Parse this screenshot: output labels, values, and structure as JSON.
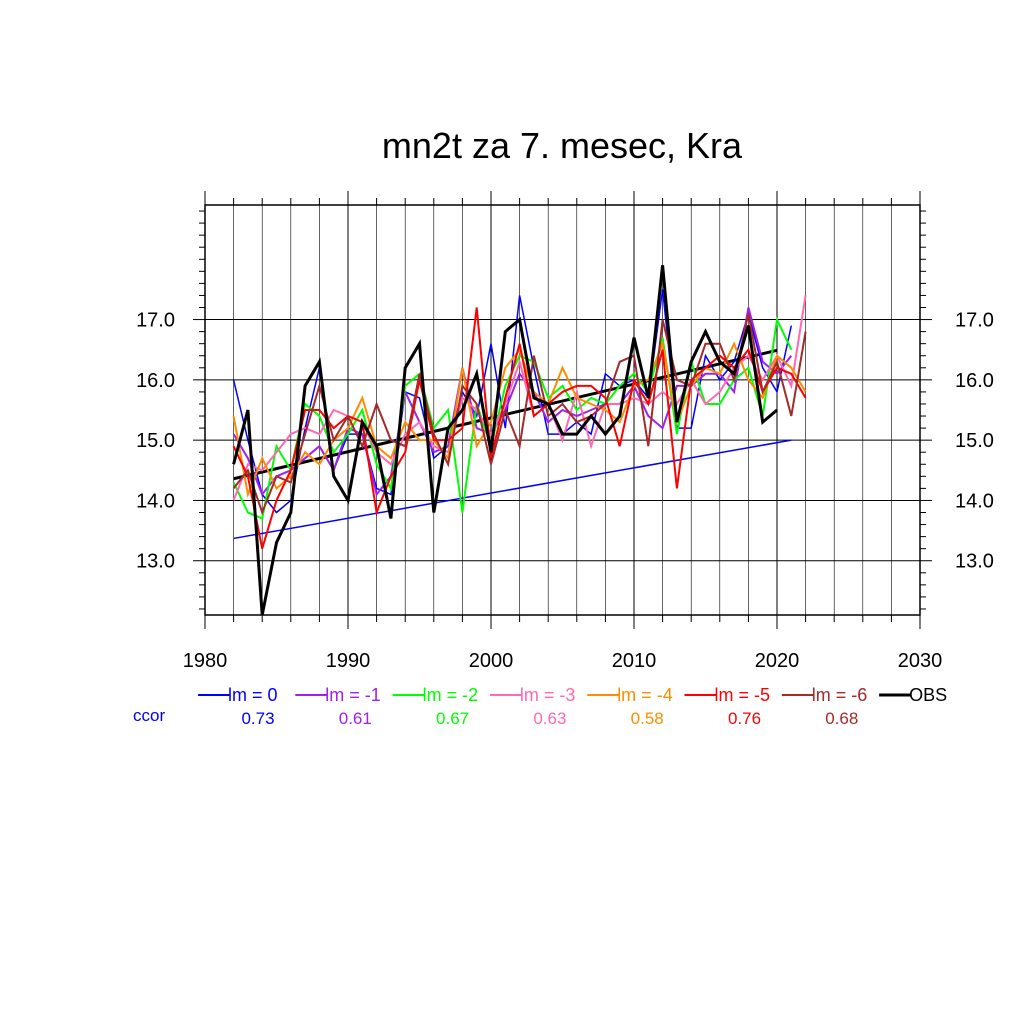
{
  "chart_data": {
    "type": "line",
    "title": "mn2t za 7. mesec, Kra",
    "xlabel": "",
    "ylabel": "",
    "xlim": [
      1980,
      2030
    ],
    "ylim": [
      12.1,
      18.9
    ],
    "xticks": [
      1980,
      1990,
      2000,
      2010,
      2020,
      2030
    ],
    "xtick_labels": [
      "1980",
      "1990",
      "2000",
      "2010",
      "2020",
      "2030"
    ],
    "yticks": [
      13.0,
      14.0,
      15.0,
      16.0,
      17.0
    ],
    "ytick_labels": [
      "13.0",
      "14.0",
      "15.0",
      "16.0",
      "17.0"
    ],
    "grid": true,
    "legend_position": "bottom",
    "ccor_label": "ccor",
    "series": [
      {
        "name": "lm = 0",
        "color": "#0000ff",
        "ccor": "0.73",
        "x": [
          1982,
          1983,
          1984,
          1985,
          1986,
          1987,
          1988,
          1989,
          1990,
          1991,
          1992,
          1993,
          1994,
          1995,
          1996,
          1997,
          1998,
          1999,
          2000,
          2001,
          2002,
          2003,
          2004,
          2005,
          2006,
          2007,
          2008,
          2009,
          2010,
          2011,
          2012,
          2013,
          2014,
          2015,
          2016,
          2017,
          2018,
          2019,
          2020,
          2021
        ],
        "values": [
          16.0,
          15.0,
          14.1,
          13.8,
          14.0,
          15.2,
          16.2,
          14.5,
          15.1,
          15.1,
          14.2,
          14.1,
          15.8,
          15.7,
          14.7,
          14.9,
          15.8,
          15.4,
          16.6,
          15.2,
          17.4,
          16.2,
          15.1,
          15.1,
          15.3,
          15.1,
          16.1,
          15.9,
          16.0,
          15.7,
          17.5,
          15.2,
          15.2,
          16.4,
          16.0,
          16.3,
          17.1,
          16.2,
          15.8,
          16.9
        ]
      },
      {
        "name": "lm = -1",
        "color": "#a020f0",
        "ccor": "0.61",
        "x": [
          1982,
          1983,
          1984,
          1985,
          1986,
          1987,
          1988,
          1989,
          1990,
          1991,
          1992,
          1993,
          1994,
          1995,
          1996,
          1997,
          1998,
          1999,
          2000,
          2001,
          2002,
          2003,
          2004,
          2005,
          2006,
          2007,
          2008,
          2009,
          2010,
          2011,
          2012,
          2013,
          2014,
          2015,
          2016,
          2017,
          2018,
          2019,
          2020,
          2021
        ],
        "values": [
          15.1,
          14.7,
          14.1,
          14.4,
          14.5,
          14.7,
          14.9,
          14.5,
          15.2,
          15.1,
          14.1,
          14.4,
          15.8,
          15.3,
          14.8,
          14.9,
          16.2,
          15.2,
          15.1,
          15.5,
          16.1,
          15.8,
          15.3,
          15.5,
          15.4,
          15.5,
          15.6,
          15.6,
          15.9,
          15.4,
          15.2,
          15.9,
          15.9,
          16.1,
          16.1,
          15.8,
          17.2,
          16.3,
          16.1,
          16.4
        ]
      },
      {
        "name": "lm = -2",
        "color": "#00ff00",
        "ccor": "0.67",
        "x": [
          1982,
          1983,
          1984,
          1985,
          1986,
          1987,
          1988,
          1989,
          1990,
          1991,
          1992,
          1993,
          1994,
          1995,
          1996,
          1997,
          1998,
          1999,
          2000,
          2001,
          2002,
          2003,
          2004,
          2005,
          2006,
          2007,
          2008,
          2009,
          2010,
          2011,
          2012,
          2013,
          2014,
          2015,
          2016,
          2017,
          2018,
          2019,
          2020,
          2021
        ],
        "values": [
          14.3,
          13.8,
          13.7,
          14.9,
          14.5,
          15.6,
          15.4,
          14.8,
          15.1,
          15.5,
          14.6,
          14.2,
          15.9,
          16.1,
          15.2,
          15.5,
          13.8,
          15.6,
          14.9,
          15.9,
          16.4,
          16.3,
          15.7,
          15.9,
          15.5,
          15.7,
          15.6,
          15.9,
          16.1,
          15.8,
          16.7,
          15.1,
          16.3,
          15.6,
          15.6,
          16.0,
          16.2,
          15.4,
          17.0,
          16.5
        ]
      },
      {
        "name": "lm = -3",
        "color": "#ff69b4",
        "ccor": "0.63",
        "x": [
          1982,
          1983,
          1984,
          1985,
          1986,
          1987,
          1988,
          1989,
          1990,
          1991,
          1992,
          1993,
          1994,
          1995,
          1996,
          1997,
          1998,
          1999,
          2000,
          2001,
          2002,
          2003,
          2004,
          2005,
          2006,
          2007,
          2008,
          2009,
          2010,
          2011,
          2012,
          2013,
          2014,
          2015,
          2016,
          2017,
          2018,
          2019,
          2020,
          2021,
          2022
        ],
        "values": [
          14.0,
          14.6,
          14.5,
          14.8,
          15.1,
          15.2,
          15.1,
          15.5,
          15.4,
          15.3,
          14.8,
          14.6,
          15.1,
          15.3,
          14.9,
          14.8,
          15.7,
          15.5,
          15.1,
          15.6,
          16.3,
          15.4,
          15.6,
          15.0,
          15.8,
          14.9,
          15.6,
          15.6,
          15.7,
          15.6,
          15.8,
          15.6,
          16.0,
          15.6,
          15.8,
          16.2,
          16.4,
          16.0,
          16.4,
          15.9,
          17.4
        ]
      },
      {
        "name": "lm = -4",
        "color": "#ff8c00",
        "ccor": "0.58",
        "x": [
          1982,
          1983,
          1984,
          1985,
          1986,
          1987,
          1988,
          1989,
          1990,
          1991,
          1992,
          1993,
          1994,
          1995,
          1996,
          1997,
          1998,
          1999,
          2000,
          2001,
          2002,
          2003,
          2004,
          2005,
          2006,
          2007,
          2008,
          2009,
          2010,
          2011,
          2012,
          2013,
          2014,
          2015,
          2016,
          2017,
          2018,
          2019,
          2020,
          2021,
          2022
        ],
        "values": [
          15.4,
          14.1,
          14.7,
          14.2,
          14.4,
          14.8,
          14.6,
          15.0,
          15.2,
          15.7,
          14.9,
          14.7,
          15.3,
          15.0,
          15.0,
          14.7,
          16.2,
          14.9,
          15.3,
          16.2,
          16.5,
          15.8,
          15.6,
          16.2,
          15.7,
          15.6,
          15.5,
          15.3,
          15.9,
          16.0,
          16.6,
          15.3,
          15.9,
          16.2,
          16.1,
          16.6,
          16.0,
          15.7,
          16.4,
          16.2,
          15.8
        ]
      },
      {
        "name": "lm = -5",
        "color": "#ff0000",
        "ccor": "0.76",
        "x": [
          1982,
          1983,
          1984,
          1985,
          1986,
          1987,
          1988,
          1989,
          1990,
          1991,
          1992,
          1993,
          1994,
          1995,
          1996,
          1997,
          1998,
          1999,
          2000,
          2001,
          2002,
          2003,
          2004,
          2005,
          2006,
          2007,
          2008,
          2009,
          2010,
          2011,
          2012,
          2013,
          2014,
          2015,
          2016,
          2017,
          2018,
          2019,
          2020,
          2021,
          2022
        ],
        "values": [
          14.9,
          14.4,
          13.2,
          14.0,
          14.5,
          15.5,
          15.5,
          15.2,
          15.4,
          15.3,
          13.8,
          14.4,
          14.8,
          16.0,
          15.0,
          15.0,
          15.2,
          17.2,
          14.7,
          15.7,
          16.6,
          15.4,
          15.6,
          15.8,
          15.9,
          15.9,
          15.7,
          14.9,
          16.0,
          15.6,
          16.5,
          14.2,
          16.0,
          16.2,
          16.4,
          16.2,
          16.5,
          15.8,
          16.2,
          16.1,
          15.7
        ]
      },
      {
        "name": "lm = -6",
        "color": "#a52a2a",
        "ccor": "0.68",
        "x": [
          1982,
          1983,
          1984,
          1985,
          1986,
          1987,
          1988,
          1989,
          1990,
          1991,
          1992,
          1993,
          1994,
          1995,
          1996,
          1997,
          1998,
          1999,
          2000,
          2001,
          2002,
          2003,
          2004,
          2005,
          2006,
          2007,
          2008,
          2009,
          2010,
          2011,
          2012,
          2013,
          2014,
          2015,
          2016,
          2017,
          2018,
          2019,
          2020,
          2021,
          2022
        ],
        "values": [
          14.2,
          14.5,
          13.8,
          14.4,
          14.3,
          15.1,
          15.9,
          15.0,
          15.4,
          14.9,
          15.6,
          15.0,
          14.9,
          16.1,
          15.1,
          14.6,
          15.9,
          15.6,
          14.6,
          15.5,
          14.9,
          16.4,
          15.4,
          15.6,
          15.3,
          15.4,
          15.6,
          16.3,
          16.4,
          14.9,
          17.0,
          16.0,
          15.9,
          16.6,
          16.6,
          16.0,
          17.1,
          15.8,
          16.3,
          15.4,
          16.8
        ]
      },
      {
        "name": "OBS",
        "color": "#000000",
        "ccor": "",
        "x": [
          1982,
          1983,
          1984,
          1985,
          1986,
          1987,
          1988,
          1989,
          1990,
          1991,
          1992,
          1993,
          1994,
          1995,
          1996,
          1997,
          1998,
          1999,
          2000,
          2001,
          2002,
          2003,
          2004,
          2005,
          2006,
          2007,
          2008,
          2009,
          2010,
          2011,
          2012,
          2013,
          2014,
          2015,
          2016,
          2017,
          2018,
          2019,
          2020
        ],
        "values": [
          14.6,
          15.5,
          12.1,
          13.3,
          13.8,
          15.9,
          16.3,
          14.4,
          14.0,
          15.3,
          14.9,
          13.7,
          16.2,
          16.6,
          13.8,
          15.2,
          15.5,
          16.1,
          14.8,
          16.8,
          17.0,
          15.7,
          15.6,
          15.1,
          15.1,
          15.4,
          15.1,
          15.4,
          16.7,
          15.7,
          17.9,
          15.3,
          16.3,
          16.8,
          16.3,
          16.1,
          16.9,
          15.3,
          15.5
        ]
      }
    ],
    "trend_lines": [
      {
        "color": "#000000",
        "x": [
          1982,
          2020
        ],
        "values": [
          14.36,
          16.49
        ]
      },
      {
        "color": "#0000ff",
        "x": [
          1982,
          2021
        ],
        "values": [
          13.37,
          15.0
        ]
      }
    ]
  }
}
